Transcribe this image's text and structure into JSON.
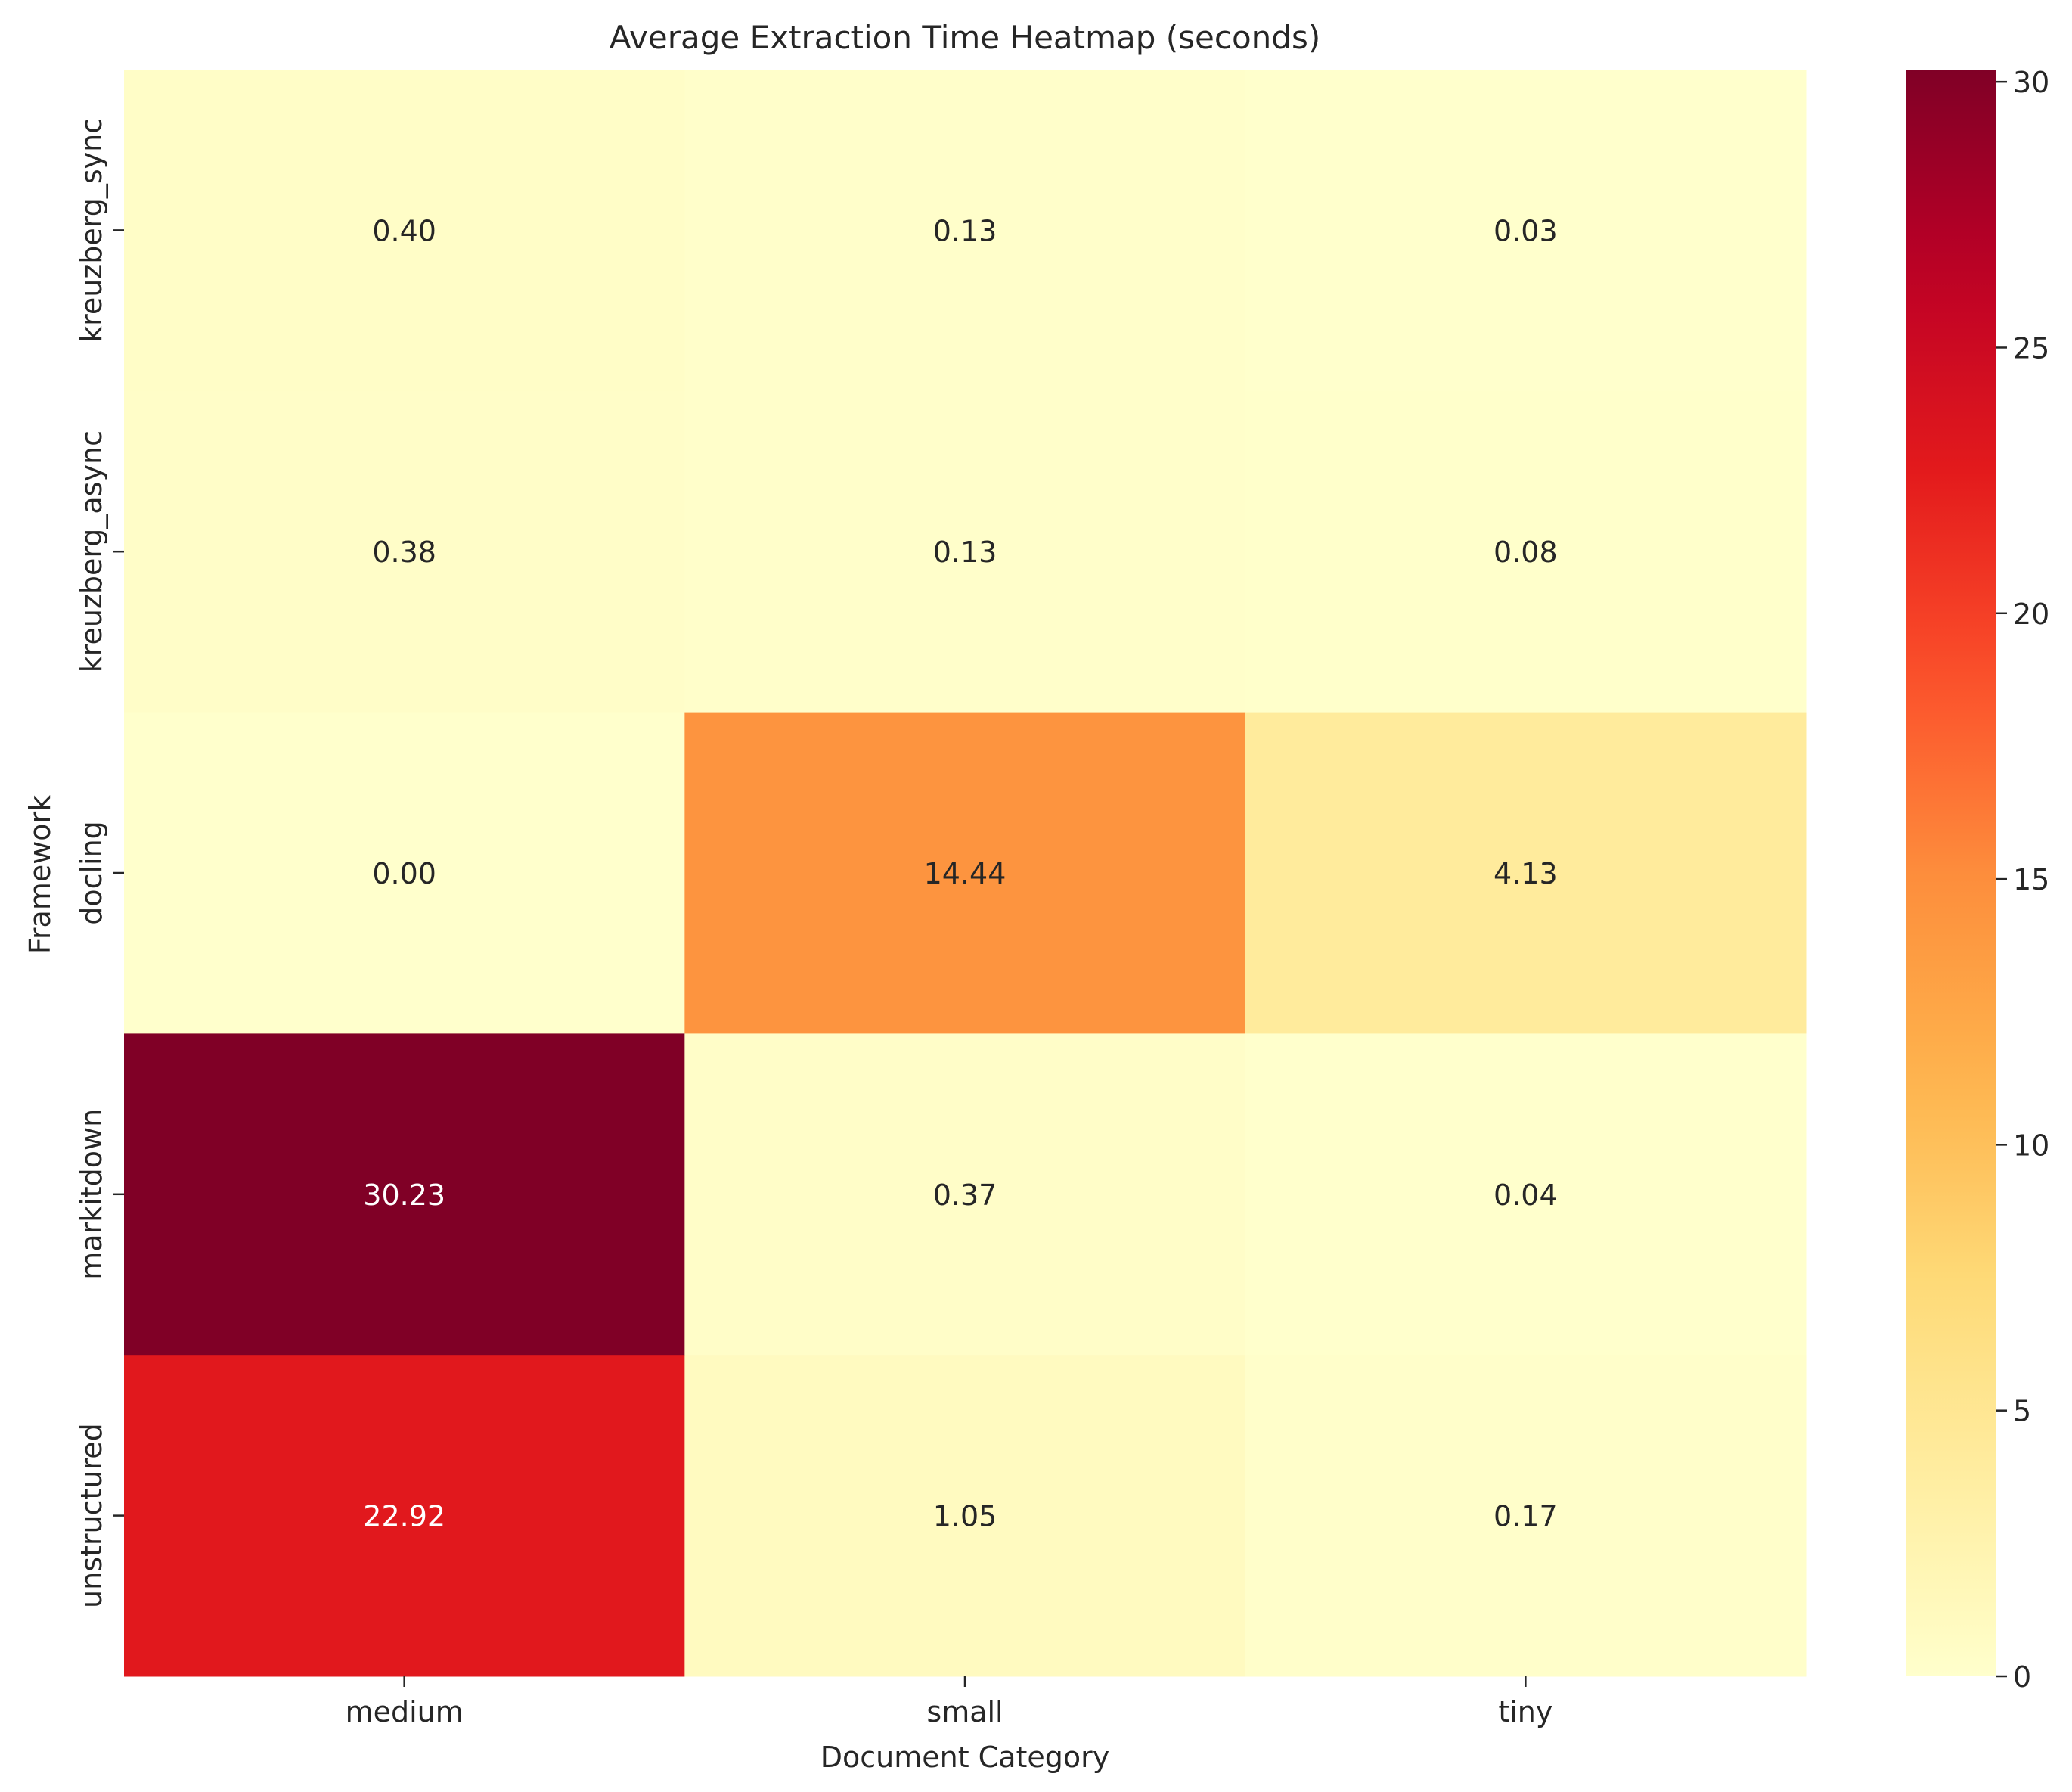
{
  "chart_data": {
    "type": "heatmap",
    "title": "Average Extraction Time Heatmap (seconds)",
    "xlabel": "Document Category",
    "ylabel": "Framework",
    "x_categories": [
      "medium",
      "small",
      "tiny"
    ],
    "y_categories": [
      "kreuzberg_sync",
      "kreuzberg_async",
      "docling",
      "markitdown",
      "unstructured"
    ],
    "values": [
      [
        0.4,
        0.13,
        0.03
      ],
      [
        0.38,
        0.13,
        0.08
      ],
      [
        0.0,
        14.44,
        4.13
      ],
      [
        30.23,
        0.37,
        0.04
      ],
      [
        22.92,
        1.05,
        0.17
      ]
    ],
    "value_format": "2 decimals",
    "colormap": "YlOrRd",
    "colorbar": {
      "range": [
        0,
        30.23
      ],
      "ticks": [
        0,
        5,
        10,
        15,
        20,
        25,
        30
      ]
    },
    "colors": {
      "low": "#ffffcc",
      "high": "#800026",
      "text_dark": "#262626",
      "text_light": "#ffffff"
    }
  }
}
